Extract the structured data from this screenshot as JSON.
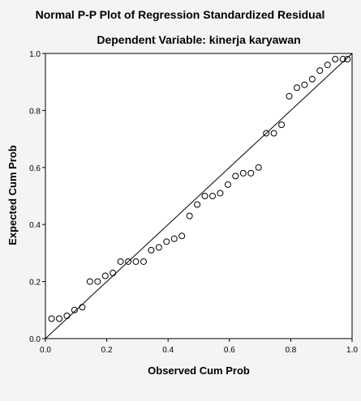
{
  "chart_data": {
    "type": "scatter",
    "title": "Normal P-P Plot of Regression Standardized Residual",
    "subtitle": "Dependent Variable: kinerja karyawan",
    "x_label": "Observed Cum Prob",
    "y_label": "Expected Cum Prob",
    "xlim": [
      0,
      1
    ],
    "ylim": [
      0,
      1
    ],
    "xticks": [
      {
        "value": 0,
        "label": "0.0"
      },
      {
        "value": 0.2,
        "label": "0.2"
      },
      {
        "value": 0.4,
        "label": "0.4"
      },
      {
        "value": 0.6,
        "label": "0.6"
      },
      {
        "value": 0.8,
        "label": "0.8"
      },
      {
        "value": 1,
        "label": "1.0"
      }
    ],
    "yticks": [
      {
        "value": 0,
        "label": "0.0"
      },
      {
        "value": 0.2,
        "label": "0.2"
      },
      {
        "value": 0.4,
        "label": "0.4"
      },
      {
        "value": 0.6,
        "label": "0.6"
      },
      {
        "value": 0.8,
        "label": "0.8"
      },
      {
        "value": 1,
        "label": "1.0"
      }
    ],
    "color": "#000000",
    "x": [
      0.02,
      0.045,
      0.07,
      0.095,
      0.12,
      0.145,
      0.17,
      0.195,
      0.22,
      0.245,
      0.27,
      0.295,
      0.32,
      0.345,
      0.37,
      0.395,
      0.42,
      0.445,
      0.47,
      0.495,
      0.52,
      0.545,
      0.57,
      0.595,
      0.62,
      0.645,
      0.67,
      0.695,
      0.72,
      0.745,
      0.77,
      0.795,
      0.82,
      0.845,
      0.87,
      0.895,
      0.92,
      0.945,
      0.97,
      0.985
    ],
    "values": [
      0.07,
      0.07,
      0.08,
      0.1,
      0.11,
      0.2,
      0.2,
      0.22,
      0.23,
      0.27,
      0.27,
      0.27,
      0.27,
      0.31,
      0.32,
      0.34,
      0.35,
      0.36,
      0.43,
      0.47,
      0.5,
      0.5,
      0.51,
      0.54,
      0.57,
      0.58,
      0.58,
      0.6,
      0.72,
      0.72,
      0.75,
      0.85,
      0.88,
      0.89,
      0.91,
      0.94,
      0.96,
      0.98,
      0.98,
      0.98
    ]
  }
}
